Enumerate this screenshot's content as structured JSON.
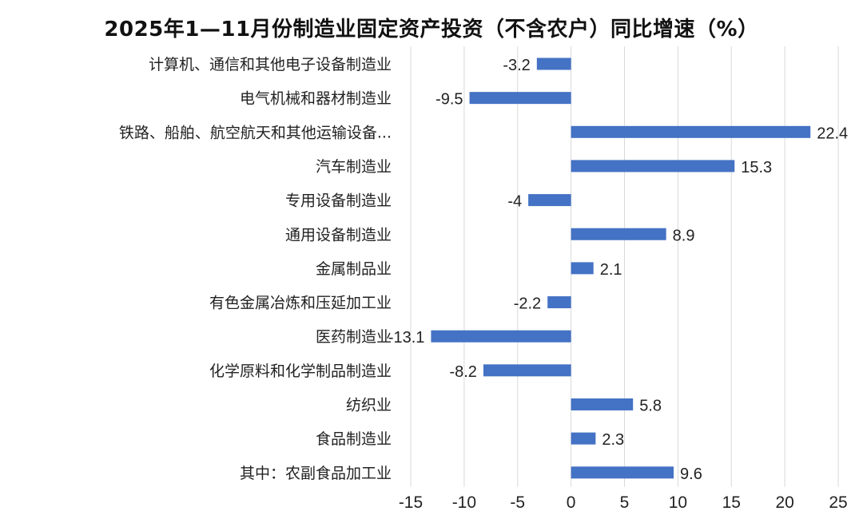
{
  "chart_data": {
    "type": "bar",
    "orientation": "horizontal",
    "title": "2025年1—11月份制造业固定资产投资（不含农户）同比增速（%）",
    "xlabel": "",
    "ylabel": "",
    "xlim": [
      -15,
      25
    ],
    "x_ticks": [
      -15,
      -10,
      -5,
      0,
      5,
      10,
      15,
      20,
      25
    ],
    "grid": "vertical",
    "legend": "none",
    "bar_color": "#4472c4",
    "categories": [
      "计算机、通信和其他电子设备制造业",
      "电气机械和器材制造业",
      "铁路、船舶、航空航天和其他运输设备...",
      "汽车制造业",
      "专用设备制造业",
      "通用设备制造业",
      "金属制品业",
      "有色金属冶炼和压延加工业",
      "医药制造业",
      "化学原料和化学制品制造业",
      "纺织业",
      "食品制造业",
      "其中：农副食品加工业"
    ],
    "values": [
      -3.2,
      -9.5,
      22.4,
      15.3,
      -4,
      8.9,
      2.1,
      -2.2,
      -13.1,
      -8.2,
      5.8,
      2.3,
      9.6
    ],
    "value_labels": [
      "-3.2",
      "-9.5",
      "22.4",
      "15.3",
      "-4",
      "8.9",
      "2.1",
      "-2.2",
      "-13.1",
      "-8.2",
      "5.8",
      "2.3",
      "9.6"
    ]
  }
}
